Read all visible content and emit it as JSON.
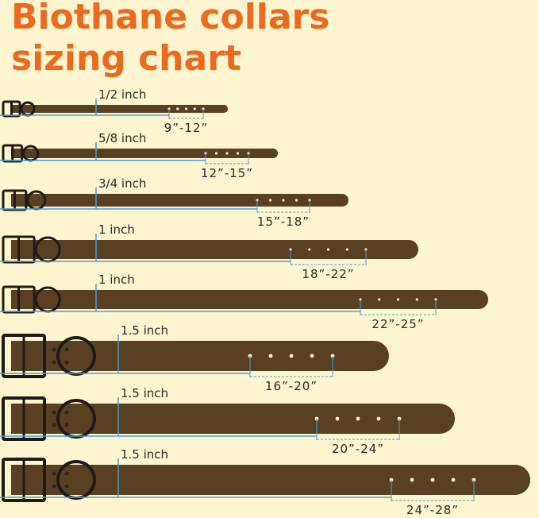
{
  "header": {
    "title_lines": [
      "Biothane collars",
      "sizing chart"
    ]
  },
  "collars": [
    {
      "width": "1/2 inch",
      "range": "9”-12”"
    },
    {
      "width": "5/8 inch",
      "range": "12”-15”"
    },
    {
      "width": "3/4 inch",
      "range": "15”-18”"
    },
    {
      "width": "1 inch",
      "range": "18”-22”"
    },
    {
      "width": "1 inch",
      "range": "22”-25”"
    },
    {
      "width": "1.5 inch",
      "range": "16”-20”"
    },
    {
      "width": "1.5 inch",
      "range": "20”-24”"
    },
    {
      "width": "1.5 inch",
      "range": "24”-28”"
    }
  ]
}
